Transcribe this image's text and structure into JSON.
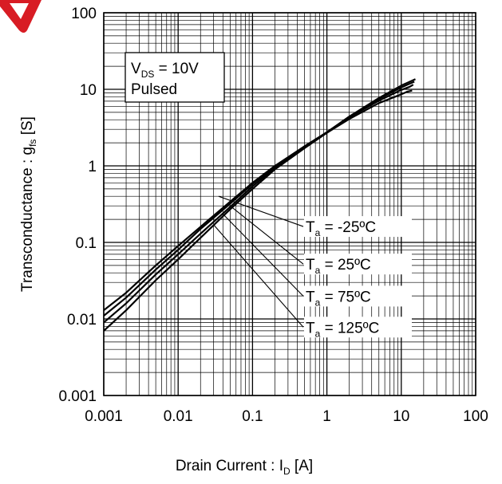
{
  "chart_data": {
    "type": "line",
    "x_scale": "log",
    "y_scale": "log",
    "xlim": [
      0.001,
      100
    ],
    "ylim": [
      0.001,
      100
    ],
    "grid": true,
    "x_ticks": [
      "0.001",
      "0.01",
      "0.1",
      "1",
      "10",
      "100"
    ],
    "y_ticks": [
      "0.001",
      "0.01",
      "0.1",
      "1",
      "10",
      "100"
    ],
    "xlabel": {
      "main": "Drain Current : I",
      "sub": "D",
      "unit": " [A]"
    },
    "ylabel": {
      "main": "Transconductance : g",
      "sub": "fs",
      "unit": " [S]"
    },
    "condition_box": {
      "line1_main": "V",
      "line1_sub": "DS",
      "line1_rest": " = 10V",
      "line2": "Pulsed"
    },
    "series": [
      {
        "name": "-25ºC",
        "label_prefix": "T",
        "label_sub": "a",
        "label_rest": " = -25ºC",
        "x": [
          0.001,
          0.002,
          0.005,
          0.01,
          0.02,
          0.05,
          0.1,
          0.2,
          0.5,
          1,
          2,
          5,
          10,
          12,
          14
        ],
        "y": [
          0.013,
          0.022,
          0.05,
          0.09,
          0.16,
          0.34,
          0.6,
          1.0,
          1.8,
          2.7,
          4.1,
          6.6,
          8.6,
          9.3,
          9.6
        ]
      },
      {
        "name": "25ºC",
        "label_prefix": "T",
        "label_sub": "a",
        "label_rest": " = 25ºC",
        "x": [
          0.001,
          0.002,
          0.005,
          0.01,
          0.02,
          0.05,
          0.1,
          0.2,
          0.5,
          1,
          2,
          5,
          10,
          13,
          14.5
        ],
        "y": [
          0.011,
          0.019,
          0.044,
          0.08,
          0.15,
          0.32,
          0.58,
          0.98,
          1.8,
          2.75,
          4.3,
          7.1,
          9.8,
          10.8,
          11.5
        ]
      },
      {
        "name": "75ºC",
        "label_prefix": "T",
        "label_sub": "a",
        "label_rest": " = 75ºC",
        "x": [
          0.001,
          0.002,
          0.005,
          0.01,
          0.02,
          0.05,
          0.1,
          0.2,
          0.5,
          1,
          2,
          5,
          10,
          15
        ],
        "y": [
          0.009,
          0.016,
          0.038,
          0.07,
          0.13,
          0.29,
          0.54,
          0.94,
          1.75,
          2.75,
          4.4,
          7.5,
          10.6,
          12.6
        ]
      },
      {
        "name": "125ºC",
        "label_prefix": "T",
        "label_sub": "a",
        "label_rest": " = 125ºC",
        "x": [
          0.001,
          0.002,
          0.005,
          0.01,
          0.02,
          0.05,
          0.1,
          0.2,
          0.5,
          1,
          2,
          5,
          10,
          15.5
        ],
        "y": [
          0.007,
          0.013,
          0.032,
          0.06,
          0.115,
          0.27,
          0.5,
          0.9,
          1.7,
          2.7,
          4.4,
          7.7,
          11.2,
          13.6
        ]
      }
    ],
    "callouts": [
      {
        "series": "-25ºC",
        "point": [
          0.035,
          0.4
        ],
        "label_y": 0.13
      },
      {
        "series": "25ºC",
        "point": [
          0.05,
          0.3
        ],
        "label_y": 0.042
      },
      {
        "series": "75ºC",
        "point": [
          0.04,
          0.235
        ],
        "label_y": 0.016
      },
      {
        "series": "125ºC",
        "point": [
          0.03,
          0.17
        ],
        "label_y": 0.0063
      }
    ]
  }
}
